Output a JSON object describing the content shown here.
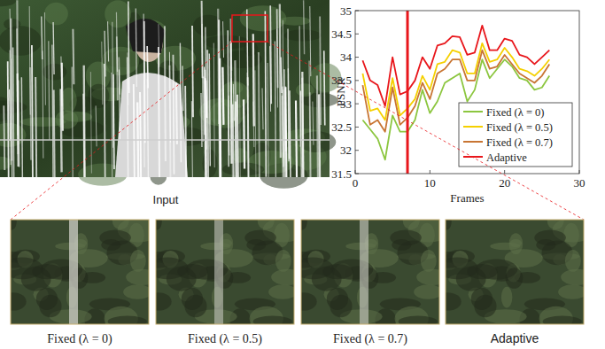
{
  "chart_data": {
    "type": "line",
    "xlabel": "Frames",
    "ylabel": "PSNR",
    "x": [
      1,
      2,
      3,
      4,
      5,
      6,
      7,
      8,
      9,
      10,
      11,
      12,
      13,
      14,
      15,
      16,
      17,
      18,
      19,
      20,
      21,
      22,
      23,
      24,
      25,
      26
    ],
    "xlim": [
      0,
      30
    ],
    "xticks": [
      0,
      10,
      20,
      30
    ],
    "ylim": [
      31.5,
      35
    ],
    "yticks": [
      31.5,
      32,
      32.5,
      33,
      33.5,
      34,
      34.5,
      35
    ],
    "legend": "lower right",
    "series": [
      {
        "name": "Fixed (λ = 0)",
        "color": "#8cc63f",
        "values": [
          32.65,
          32.45,
          32.25,
          31.8,
          32.75,
          32.4,
          32.4,
          32.65,
          33.3,
          32.8,
          33.05,
          33.45,
          33.55,
          33.65,
          33.05,
          33.3,
          33.95,
          33.55,
          33.75,
          33.95,
          33.8,
          33.55,
          33.5,
          33.3,
          33.35,
          33.6
        ]
      },
      {
        "name": "Fixed (λ = 0.5)",
        "color": "#f5d000",
        "values": [
          33.65,
          32.85,
          32.9,
          32.65,
          33.55,
          32.75,
          32.9,
          33.1,
          33.6,
          33.3,
          33.85,
          33.9,
          34.15,
          34.1,
          33.65,
          33.65,
          34.3,
          33.9,
          33.95,
          34.2,
          34.0,
          33.75,
          33.7,
          33.6,
          33.75,
          33.95
        ]
      },
      {
        "name": "Fixed (λ = 0.7)",
        "color": "#c87533",
        "values": [
          33.4,
          32.55,
          32.65,
          32.4,
          33.35,
          32.55,
          32.7,
          32.95,
          33.45,
          33.1,
          33.65,
          33.75,
          33.95,
          33.95,
          33.5,
          33.5,
          34.15,
          33.75,
          33.8,
          34.05,
          33.85,
          33.65,
          33.55,
          33.45,
          33.6,
          33.85
        ]
      },
      {
        "name": "Adaptive",
        "color": "#e8161b",
        "values": [
          33.93,
          33.5,
          33.4,
          32.95,
          34.0,
          33.2,
          33.27,
          33.5,
          34.0,
          33.75,
          34.25,
          34.3,
          34.45,
          34.43,
          34.05,
          34.1,
          34.68,
          34.15,
          34.15,
          34.4,
          34.35,
          34.05,
          34.0,
          33.85,
          34.0,
          34.15
        ]
      }
    ],
    "annotations": [
      {
        "x": 7,
        "color": "#e8161b"
      }
    ]
  },
  "figure": {
    "input_label": "Input",
    "crops": [
      {
        "caption": "Fixed (λ = 0)"
      },
      {
        "caption": "Fixed (λ = 0.5)"
      },
      {
        "caption": "Fixed (λ = 0.7)"
      },
      {
        "caption": "Adaptive"
      }
    ]
  }
}
